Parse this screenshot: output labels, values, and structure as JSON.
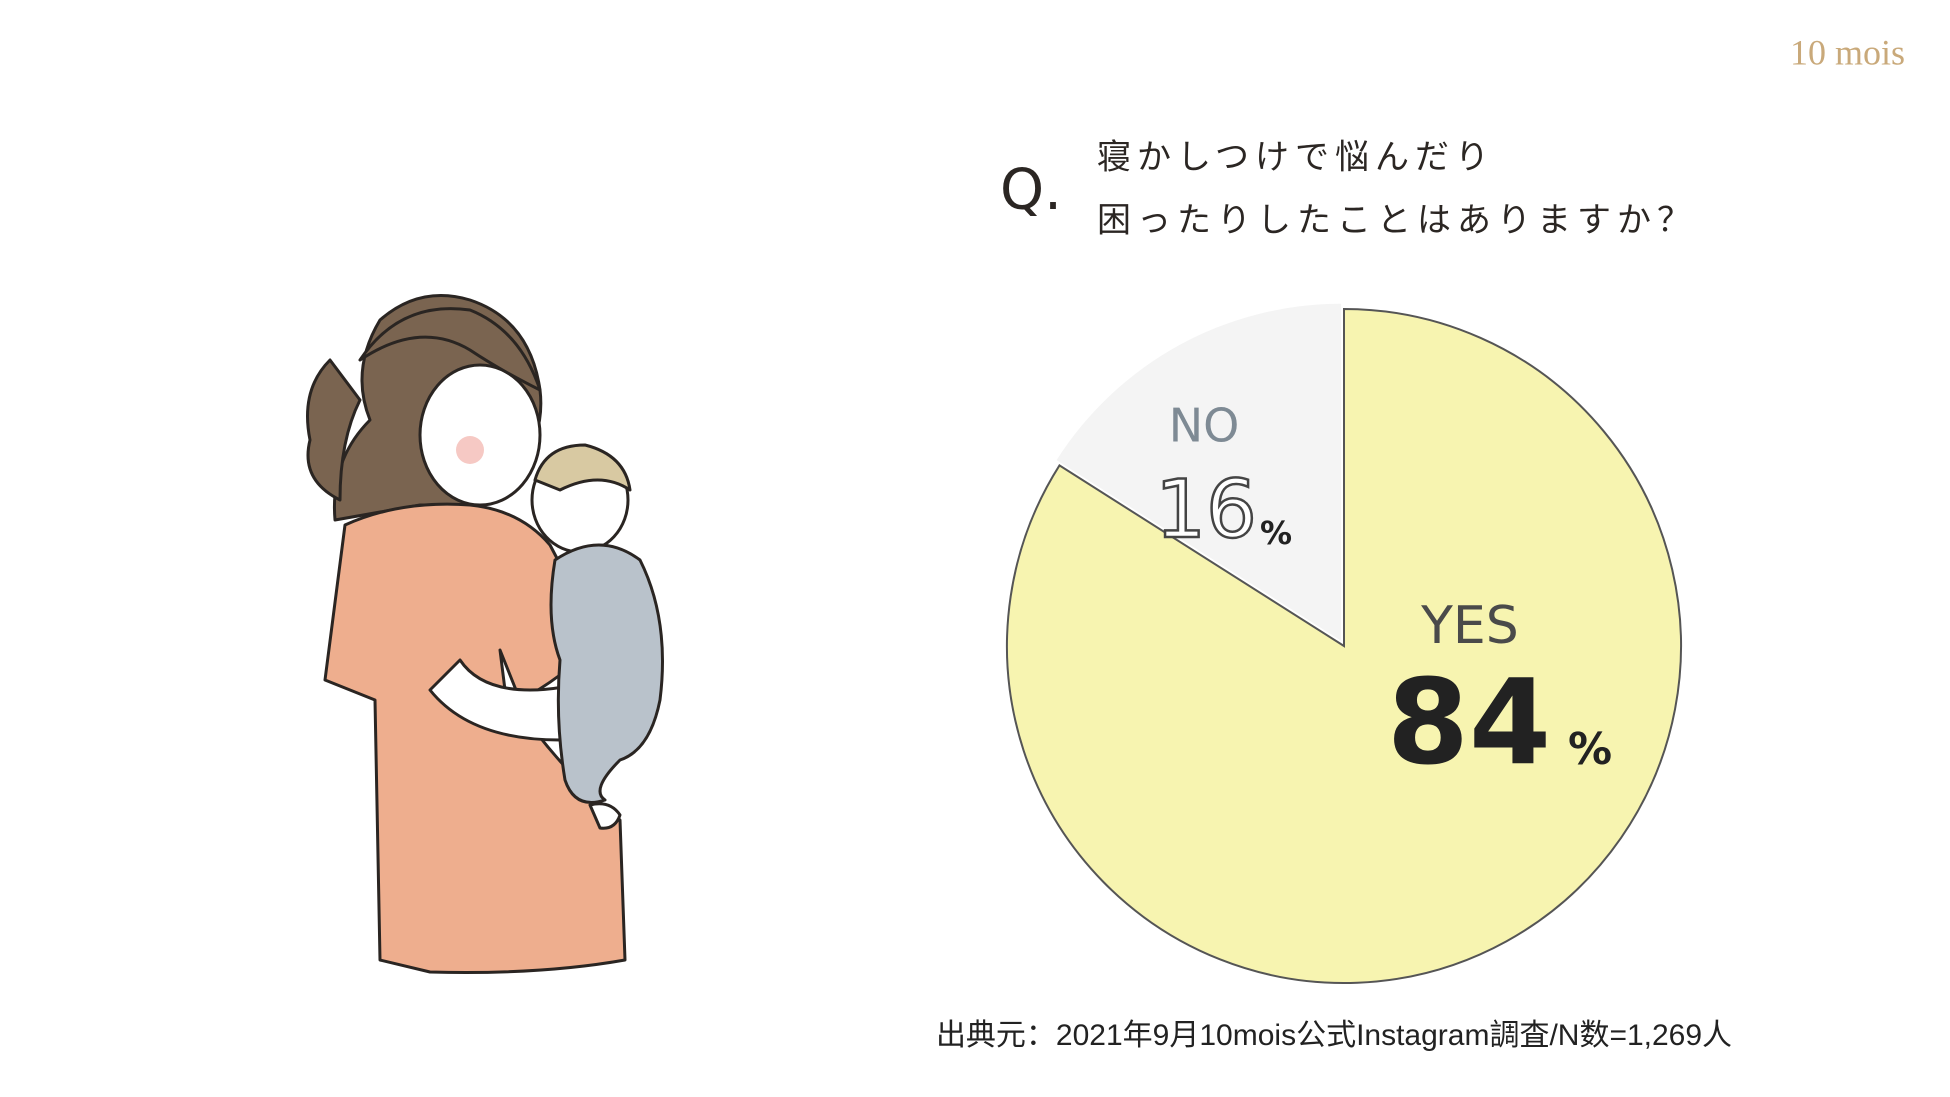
{
  "brand": "10 mois",
  "chart_data": {
    "type": "pie",
    "question_marker": "Q.",
    "title": [
      "寝かしつけで悩んだり",
      "困ったりしたことはありますか？"
    ],
    "categories": [
      "YES",
      "NO"
    ],
    "values": [
      84,
      16
    ],
    "value_suffix": "%",
    "colors": [
      "#f7f4b0",
      "#f4f4f4"
    ],
    "source": "出典元：2021年9月10mois公式Instagram調査/N数=1,269人"
  }
}
